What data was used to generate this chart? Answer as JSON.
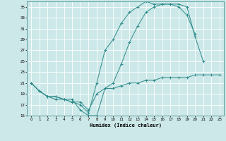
{
  "xlabel": "Humidex (Indice chaleur)",
  "bg_color": "#cce8e8",
  "line_color": "#2e8b8b",
  "grid_color": "#ffffff",
  "xlim": [
    -0.5,
    23.5
  ],
  "ylim": [
    15,
    36
  ],
  "xticks": [
    0,
    1,
    2,
    3,
    4,
    5,
    6,
    7,
    8,
    9,
    10,
    11,
    12,
    13,
    14,
    15,
    16,
    17,
    18,
    19,
    20,
    21,
    22,
    23
  ],
  "yticks": [
    15,
    17,
    19,
    21,
    23,
    25,
    27,
    29,
    31,
    33,
    35
  ],
  "line1_x": [
    0,
    1,
    2,
    3,
    4,
    5,
    6,
    7,
    8,
    9,
    10,
    11,
    12,
    13,
    14,
    15,
    16,
    17,
    18,
    19,
    20
  ],
  "line1_y": [
    21,
    19.5,
    18.5,
    18.5,
    18,
    17.5,
    17,
    15.5,
    21,
    27,
    29,
    32,
    34,
    35,
    36,
    35.5,
    35.5,
    35.5,
    35,
    33.5,
    30
  ],
  "line2_x": [
    0,
    1,
    2,
    3,
    4,
    5,
    6,
    7,
    8,
    9,
    10,
    11,
    12,
    13,
    14,
    15,
    16,
    17,
    18,
    19,
    20,
    21
  ],
  "line2_y": [
    21,
    19.5,
    18.5,
    18,
    18,
    18,
    16,
    15,
    15,
    20,
    21,
    24.5,
    28.5,
    31.5,
    34,
    35,
    35.5,
    35.5,
    35.5,
    35,
    29.5,
    25
  ],
  "line3_x": [
    0,
    1,
    2,
    3,
    4,
    5,
    6,
    7,
    8,
    9,
    10,
    11,
    12,
    13,
    14,
    15,
    16,
    17,
    18,
    19,
    20,
    21,
    22,
    23
  ],
  "line3_y": [
    21,
    19.5,
    18.5,
    18.5,
    18,
    17.5,
    17.5,
    16,
    19,
    20,
    20,
    20.5,
    21,
    21,
    21.5,
    21.5,
    22,
    22,
    22,
    22,
    22.5,
    22.5,
    22.5,
    22.5
  ]
}
